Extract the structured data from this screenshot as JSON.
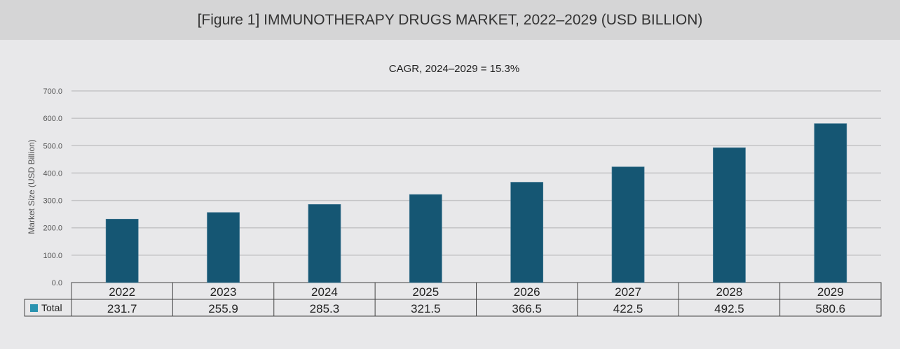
{
  "header": {
    "title": "[Figure 1] IMMUNOTHERAPY DRUGS MARKET, 2022–2029 (USD BILLION)"
  },
  "chart_data": {
    "type": "bar",
    "title": "CAGR, 2024–2029 = 15.3%",
    "ylabel": "Market Size (USD Billion)",
    "xlabel": "",
    "ylim": [
      0,
      700
    ],
    "yticks": [
      "0.0",
      "100.0",
      "200.0",
      "300.0",
      "400.0",
      "500.0",
      "600.0",
      "700.0"
    ],
    "grid": true,
    "categories": [
      "2022",
      "2023",
      "2024",
      "2025",
      "2026",
      "2027",
      "2028",
      "2029"
    ],
    "series": [
      {
        "name": "Total",
        "values": [
          231.7,
          255.9,
          285.3,
          321.5,
          366.5,
          422.5,
          492.5,
          580.6
        ],
        "labels": [
          "231.7",
          "255.9",
          "285.3",
          "321.5",
          "366.5",
          "422.5",
          "492.5",
          "580.6"
        ],
        "color": "#155673",
        "legend_color": "#2a93b0"
      }
    ],
    "data_table": true
  }
}
